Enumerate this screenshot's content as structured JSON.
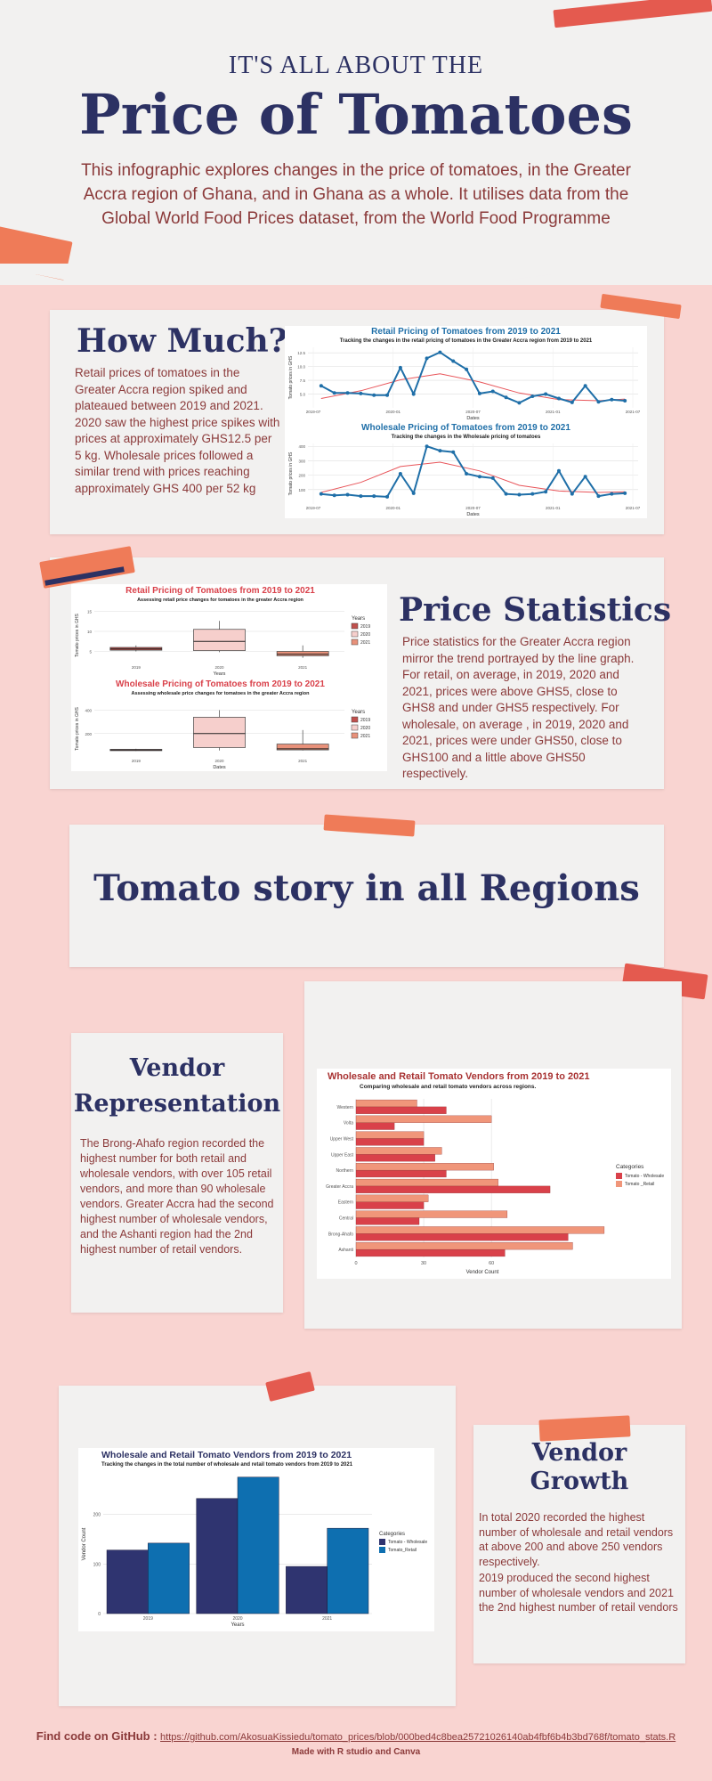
{
  "header": {
    "kicker": "IT'S ALL ABOUT THE",
    "title": "Price of Tomatoes",
    "intro": "This infographic explores changes in the price of tomatoes, in the Greater Accra region of Ghana, and in Ghana as a whole. It utilises data from the Global World Food Prices dataset, from the World Food Programme"
  },
  "how_much": {
    "heading": "How Much?",
    "text": "Retail prices of tomatoes in the Greater Accra region spiked and plateaued between 2019 and 2021. 2020 saw the highest price spikes with prices at approximately GHS12.5 per 5 kg. Wholesale prices followed a similar trend with prices reaching approximately GHS 400 per 52 kg"
  },
  "price_statistics": {
    "heading": "Price Statistics",
    "text": "Price statistics for the Greater Accra region mirror the trend portrayed by the line graph. For retail, on average, in 2019, 2020 and 2021, prices were above GHS5, close to GHS8 and under GHS5 respectively. For wholesale, on average , in 2019, 2020 and 2021, prices were under GHS50, close to GHS100 and a little above GHS50 respectively."
  },
  "regions": {
    "heading": "Tomato story in all Regions"
  },
  "vendor_representation": {
    "heading_line1": "Vendor",
    "heading_line2": "Representation",
    "text": "The Brong-Ahafo region recorded the highest number for both retail and wholesale vendors, with over 105 retail vendors, and more than 90 wholesale vendors. Greater Accra had the second highest number of wholesale vendors, and the Ashanti region had the 2nd highest number of retail vendors."
  },
  "vendor_growth": {
    "heading_line1": "Vendor",
    "heading_line2": "Growth",
    "text1": "In total 2020 recorded the highest number of wholesale and retail vendors at above 200 and above 250 vendors respectively.",
    "text2": "2019 produced the second highest number of wholesale vendors and 2021 the 2nd highest number of retail vendors"
  },
  "footer": {
    "label": "Find code on GitHub :",
    "link": "https://github.com/AkosuaKissiedu/tomato_prices/blob/000bed4c8bea25721026140ab4fbf6b4b3bd768f/tomato_stats.R",
    "made_with": "Made with R studio and Canva"
  },
  "colors": {
    "navy": "#2c3163",
    "text_red": "#8b3a3a",
    "line_blue": "#1f6fa8",
    "trend_red": "#e8555a",
    "bar_dark": "#d9414a",
    "bar_light": "#f0967a",
    "bar_navy": "#2f3470",
    "bar_blue": "#0e6fb0"
  },
  "chart_data": [
    {
      "type": "line",
      "title": "Retail Pricing of Tomatoes from 2019 to 2021",
      "subtitle": "Tracking the changes in the retail pricing of tomatoes in the Greater Accra region from 2019 to 2021",
      "xlabel": "Dates",
      "ylabel": "Tomato prices in GHS",
      "x_ticks": [
        "2019-07",
        "2020-01",
        "2020-07",
        "2021-01",
        "2021-07"
      ],
      "y_ticks": [
        "5.0",
        "7.5",
        "10.0",
        "12.5"
      ],
      "ylim": [
        2.5,
        13.5
      ],
      "x": [
        0,
        1,
        2,
        3,
        4,
        5,
        6,
        7,
        8,
        9,
        10,
        11,
        12,
        13,
        14,
        15,
        16,
        17,
        18,
        19,
        20,
        21,
        22,
        23
      ],
      "values": [
        6.5,
        5.2,
        5.2,
        5.1,
        4.8,
        4.8,
        9.8,
        5.0,
        11.5,
        12.6,
        11.0,
        9.5,
        5.1,
        5.5,
        4.4,
        3.4,
        4.6,
        5.0,
        4.2,
        3.5,
        6.5,
        3.6,
        4.0,
        3.8
      ],
      "trend_x": [
        0,
        3,
        6,
        9,
        12,
        15,
        18,
        21,
        23
      ],
      "trend": [
        4.2,
        5.6,
        7.6,
        8.7,
        7.2,
        5.2,
        4.0,
        3.8,
        4.1
      ],
      "xlim": [
        -1,
        24
      ]
    },
    {
      "type": "line",
      "title": "Wholesale Pricing of Tomatoes from 2019 to 2021",
      "subtitle": "Tracking the changes in the Wholesale pricing of tomatoes",
      "xlabel": "Dates",
      "ylabel": "Tomato prices in GHS",
      "x_ticks": [
        "2019-07",
        "2020-01",
        "2020-07",
        "2021-01",
        "2021-07"
      ],
      "y_ticks": [
        "100",
        "200",
        "300",
        "400"
      ],
      "ylim": [
        0,
        420
      ],
      "x": [
        0,
        1,
        2,
        3,
        4,
        5,
        6,
        7,
        8,
        9,
        10,
        11,
        12,
        13,
        14,
        15,
        16,
        17,
        18,
        19,
        20,
        21,
        22,
        23
      ],
      "values": [
        70,
        60,
        65,
        55,
        55,
        50,
        210,
        75,
        400,
        370,
        360,
        210,
        190,
        180,
        70,
        65,
        70,
        85,
        230,
        70,
        190,
        55,
        70,
        75
      ],
      "trend_x": [
        0,
        3,
        6,
        9,
        12,
        15,
        18,
        21,
        23
      ],
      "trend": [
        80,
        150,
        260,
        290,
        230,
        130,
        90,
        80,
        85
      ],
      "xlim": [
        -1,
        24
      ]
    },
    {
      "type": "box",
      "title": "Retail Pricing of Tomatoes from 2019 to 2021",
      "subtitle": "Assessing retail price changes for tomatoes in the greater Accra region",
      "xlabel": "Years",
      "ylabel": "Tomato prices in GHS",
      "legend_title": "Years",
      "categories": [
        "2019",
        "2020",
        "2021"
      ],
      "y_ticks": [
        "5",
        "10",
        "15"
      ],
      "ylim": [
        2,
        16
      ],
      "boxes": [
        {
          "min": 5.0,
          "q1": 5.3,
          "median": 5.6,
          "q3": 6.0,
          "max": 6.5
        },
        {
          "min": 4.8,
          "q1": 5.2,
          "median": 7.5,
          "q3": 10.5,
          "max": 12.6
        },
        {
          "min": 3.4,
          "q1": 3.9,
          "median": 4.3,
          "q3": 5.0,
          "max": 6.5
        }
      ]
    },
    {
      "type": "box",
      "title": "Wholesale Pricing of Tomatoes from 2019 to 2021",
      "subtitle": "Assessing wholesale price changes for tomatoes in the greater Accra region",
      "xlabel": "Dates",
      "ylabel": "Tomato prices in GHS",
      "legend_title": "Years",
      "categories": [
        "2019",
        "2020",
        "2021"
      ],
      "y_ticks": [
        "200",
        "400"
      ],
      "ylim": [
        0,
        480
      ],
      "boxes": [
        {
          "min": 50,
          "q1": 55,
          "median": 60,
          "q3": 65,
          "max": 70
        },
        {
          "min": 55,
          "q1": 80,
          "median": 200,
          "q3": 340,
          "max": 400
        },
        {
          "min": 55,
          "q1": 60,
          "median": 70,
          "q3": 110,
          "max": 230
        }
      ]
    },
    {
      "type": "bar",
      "orientation": "horizontal",
      "title": "Wholesale and Retail Tomato Vendors from 2019 to 2021",
      "subtitle": "Comparing wholesale and retail tomato vendors across regions.",
      "xlabel": "Vendor Count",
      "legend_title": "Categories",
      "categories": [
        "Western",
        "Volta",
        "Upper West",
        "Upper East",
        "Northern",
        "Greater Accra",
        "Eastern",
        "Central",
        "Brong-Ahafo",
        "Ashanti"
      ],
      "x_ticks": [
        "0",
        "30",
        "60"
      ],
      "xlim": [
        0,
        112
      ],
      "series": [
        {
          "name": "Tomato - Wholesale",
          "values": [
            40,
            17,
            30,
            35,
            40,
            86,
            30,
            28,
            94,
            66
          ]
        },
        {
          "name": "Tomato _Retail",
          "values": [
            27,
            60,
            30,
            38,
            61,
            63,
            32,
            67,
            110,
            96
          ]
        }
      ]
    },
    {
      "type": "bar",
      "title": "Wholesale and Retail Tomato Vendors from 2019 to 2021",
      "subtitle": "Tracking the changes in the total number of wholesale and retail tomato vendors from 2019 to 2021",
      "xlabel": "Years",
      "ylabel": "Vendor Count",
      "legend_title": "Categories",
      "categories": [
        "2019",
        "2020",
        "2021"
      ],
      "y_ticks": [
        "0",
        "100",
        "200"
      ],
      "ylim": [
        0,
        280
      ],
      "series": [
        {
          "name": "Tomato - Wholesale",
          "values": [
            128,
            232,
            95
          ]
        },
        {
          "name": "Tomato_Retail",
          "values": [
            142,
            275,
            172
          ]
        }
      ]
    }
  ]
}
